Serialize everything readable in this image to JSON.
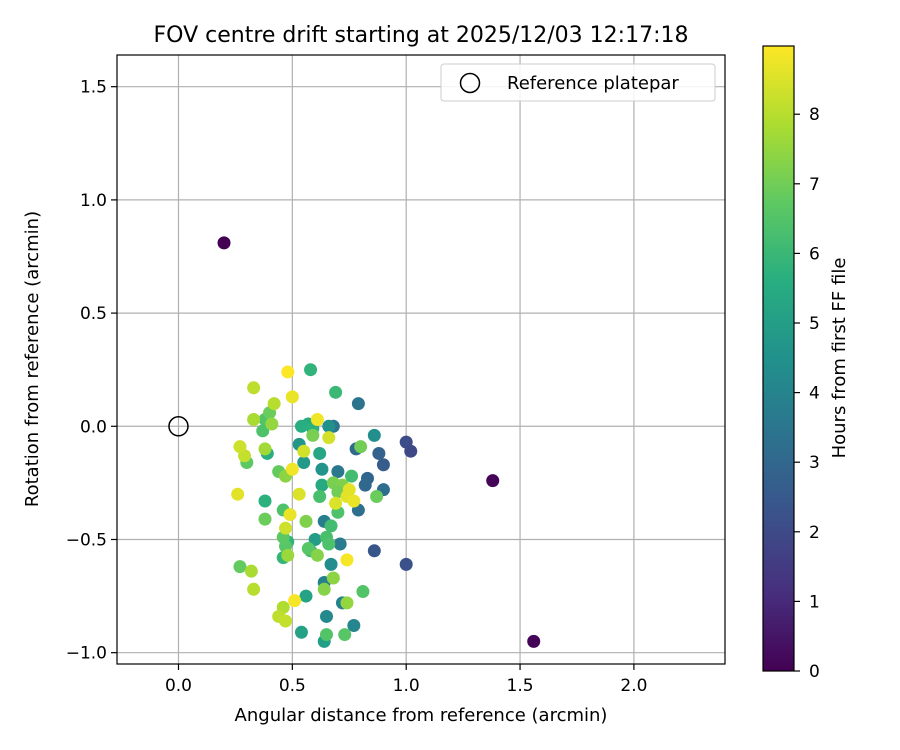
{
  "chart_data": {
    "type": "scatter",
    "title": "FOV centre drift starting at 2025/12/03 12:17:18",
    "xlabel": "Angular distance from reference (arcmin)",
    "ylabel": "Rotation from reference (arcmin)",
    "xlim": [
      -0.27,
      2.4
    ],
    "ylim": [
      -1.05,
      1.64
    ],
    "xticks": [
      0.0,
      0.5,
      1.0,
      1.5,
      2.0
    ],
    "xtick_labels": [
      "0.0",
      "0.5",
      "1.0",
      "1.5",
      "2.0"
    ],
    "yticks": [
      -1.0,
      -0.5,
      0.0,
      0.5,
      1.0,
      1.5
    ],
    "ytick_labels": [
      "−1.0",
      "−0.5",
      "0.0",
      "0.5",
      "1.0",
      "1.5"
    ],
    "grid": true,
    "legend": {
      "label": "Reference platepar",
      "position": "upper right"
    },
    "reference_point": {
      "x": 0.0,
      "y": 0.0
    },
    "colorbar": {
      "label": "Hours from first FF file",
      "min": 0,
      "max": 8.98,
      "ticks": [
        0,
        1,
        2,
        3,
        4,
        5,
        6,
        7,
        8
      ],
      "tick_labels": [
        "0",
        "1",
        "2",
        "3",
        "4",
        "5",
        "6",
        "7",
        "8"
      ],
      "colormap": "viridis"
    },
    "points": [
      {
        "x": 0.2,
        "y": 0.81,
        "t": 0.0
      },
      {
        "x": 1.38,
        "y": -0.24,
        "t": 0.1
      },
      {
        "x": 1.56,
        "y": -0.95,
        "t": 0.1
      },
      {
        "x": 1.0,
        "y": -0.07,
        "t": 2.1
      },
      {
        "x": 1.02,
        "y": -0.11,
        "t": 2.0
      },
      {
        "x": 1.0,
        "y": -0.61,
        "t": 2.2
      },
      {
        "x": 0.86,
        "y": -0.55,
        "t": 2.4
      },
      {
        "x": 0.9,
        "y": -0.17,
        "t": 2.6
      },
      {
        "x": 0.88,
        "y": -0.12,
        "t": 2.8
      },
      {
        "x": 0.83,
        "y": -0.23,
        "t": 2.9
      },
      {
        "x": 0.82,
        "y": -0.26,
        "t": 3.0
      },
      {
        "x": 0.78,
        "y": -0.1,
        "t": 3.1
      },
      {
        "x": 0.9,
        "y": -0.28,
        "t": 3.2
      },
      {
        "x": 0.79,
        "y": -0.37,
        "t": 3.3
      },
      {
        "x": 0.79,
        "y": 0.1,
        "t": 3.4
      },
      {
        "x": 0.68,
        "y": 0.0,
        "t": 3.5
      },
      {
        "x": 0.7,
        "y": -0.2,
        "t": 3.6
      },
      {
        "x": 0.71,
        "y": -0.52,
        "t": 3.7
      },
      {
        "x": 0.64,
        "y": -0.42,
        "t": 3.8
      },
      {
        "x": 0.64,
        "y": -0.69,
        "t": 3.9
      },
      {
        "x": 0.72,
        "y": -0.78,
        "t": 4.0
      },
      {
        "x": 0.77,
        "y": -0.88,
        "t": 4.1
      },
      {
        "x": 0.65,
        "y": -0.84,
        "t": 4.2
      },
      {
        "x": 0.67,
        "y": -0.61,
        "t": 4.3
      },
      {
        "x": 0.86,
        "y": -0.04,
        "t": 4.4
      },
      {
        "x": 0.66,
        "y": 0.0,
        "t": 4.5
      },
      {
        "x": 0.63,
        "y": -0.19,
        "t": 4.6
      },
      {
        "x": 0.53,
        "y": -0.08,
        "t": 4.7
      },
      {
        "x": 0.55,
        "y": -0.16,
        "t": 4.8
      },
      {
        "x": 0.6,
        "y": -0.5,
        "t": 4.9
      },
      {
        "x": 0.64,
        "y": -0.95,
        "t": 5.0
      },
      {
        "x": 0.54,
        "y": -0.91,
        "t": 5.1
      },
      {
        "x": 0.56,
        "y": -0.75,
        "t": 5.2
      },
      {
        "x": 0.62,
        "y": -0.12,
        "t": 5.3
      },
      {
        "x": 0.63,
        "y": -0.26,
        "t": 5.4
      },
      {
        "x": 0.57,
        "y": 0.01,
        "t": 5.5
      },
      {
        "x": 0.54,
        "y": 0.0,
        "t": 5.6
      },
      {
        "x": 0.59,
        "y": -0.01,
        "t": 5.7
      },
      {
        "x": 0.48,
        "y": -0.51,
        "t": 5.8
      },
      {
        "x": 0.46,
        "y": -0.58,
        "t": 5.9
      },
      {
        "x": 0.38,
        "y": -0.33,
        "t": 5.7
      },
      {
        "x": 0.39,
        "y": -0.12,
        "t": 5.6
      },
      {
        "x": 0.58,
        "y": 0.25,
        "t": 5.8
      },
      {
        "x": 0.69,
        "y": 0.15,
        "t": 6.0
      },
      {
        "x": 0.58,
        "y": -0.55,
        "t": 6.1
      },
      {
        "x": 0.67,
        "y": -0.44,
        "t": 6.2
      },
      {
        "x": 0.62,
        "y": -0.31,
        "t": 6.3
      },
      {
        "x": 0.7,
        "y": -0.38,
        "t": 6.4
      },
      {
        "x": 0.76,
        "y": -0.22,
        "t": 6.2
      },
      {
        "x": 0.65,
        "y": -0.49,
        "t": 6.3
      },
      {
        "x": 0.66,
        "y": -0.52,
        "t": 6.4
      },
      {
        "x": 0.65,
        "y": -0.92,
        "t": 6.5
      },
      {
        "x": 0.73,
        "y": -0.92,
        "t": 6.6
      },
      {
        "x": 0.81,
        "y": -0.73,
        "t": 6.5
      },
      {
        "x": 0.57,
        "y": -0.54,
        "t": 6.6
      },
      {
        "x": 0.46,
        "y": -0.37,
        "t": 6.4
      },
      {
        "x": 0.47,
        "y": -0.53,
        "t": 6.6
      },
      {
        "x": 0.46,
        "y": -0.49,
        "t": 6.7
      },
      {
        "x": 0.44,
        "y": -0.2,
        "t": 6.8
      },
      {
        "x": 0.38,
        "y": -0.41,
        "t": 6.9
      },
      {
        "x": 0.27,
        "y": -0.62,
        "t": 6.8
      },
      {
        "x": 0.3,
        "y": -0.16,
        "t": 6.7
      },
      {
        "x": 0.38,
        "y": 0.03,
        "t": 6.5
      },
      {
        "x": 0.37,
        "y": -0.02,
        "t": 6.4
      },
      {
        "x": 0.4,
        "y": 0.06,
        "t": 6.9
      },
      {
        "x": 0.8,
        "y": -0.09,
        "t": 7.0
      },
      {
        "x": 0.87,
        "y": -0.31,
        "t": 6.9
      },
      {
        "x": 0.68,
        "y": -0.25,
        "t": 7.1
      },
      {
        "x": 0.72,
        "y": -0.26,
        "t": 7.2
      },
      {
        "x": 0.7,
        "y": -0.29,
        "t": 7.0
      },
      {
        "x": 0.64,
        "y": -0.72,
        "t": 7.3
      },
      {
        "x": 0.68,
        "y": -0.67,
        "t": 7.4
      },
      {
        "x": 0.74,
        "y": -0.78,
        "t": 7.5
      },
      {
        "x": 0.61,
        "y": -0.57,
        "t": 7.3
      },
      {
        "x": 0.56,
        "y": -0.42,
        "t": 7.2
      },
      {
        "x": 0.59,
        "y": -0.04,
        "t": 7.1
      },
      {
        "x": 0.47,
        "y": -0.22,
        "t": 7.4
      },
      {
        "x": 0.48,
        "y": -0.57,
        "t": 7.6
      },
      {
        "x": 0.41,
        "y": 0.01,
        "t": 7.5
      },
      {
        "x": 0.38,
        "y": -0.1,
        "t": 7.7
      },
      {
        "x": 0.33,
        "y": 0.03,
        "t": 7.8
      },
      {
        "x": 0.32,
        "y": -0.64,
        "t": 7.8
      },
      {
        "x": 0.33,
        "y": -0.72,
        "t": 8.0
      },
      {
        "x": 0.46,
        "y": -0.8,
        "t": 7.9
      },
      {
        "x": 0.44,
        "y": -0.84,
        "t": 8.1
      },
      {
        "x": 0.47,
        "y": -0.86,
        "t": 8.2
      },
      {
        "x": 0.42,
        "y": 0.1,
        "t": 8.0
      },
      {
        "x": 0.33,
        "y": 0.17,
        "t": 8.1
      },
      {
        "x": 0.29,
        "y": -0.13,
        "t": 8.2
      },
      {
        "x": 0.27,
        "y": -0.09,
        "t": 8.3
      },
      {
        "x": 0.47,
        "y": -0.45,
        "t": 8.3
      },
      {
        "x": 0.55,
        "y": -0.11,
        "t": 8.4
      },
      {
        "x": 0.53,
        "y": -0.3,
        "t": 8.5
      },
      {
        "x": 0.66,
        "y": -0.05,
        "t": 8.4
      },
      {
        "x": 0.69,
        "y": -0.34,
        "t": 8.5
      },
      {
        "x": 0.74,
        "y": -0.31,
        "t": 8.6
      },
      {
        "x": 0.77,
        "y": -0.33,
        "t": 8.7
      },
      {
        "x": 0.75,
        "y": -0.28,
        "t": 8.6
      },
      {
        "x": 0.49,
        "y": -0.39,
        "t": 8.7
      },
      {
        "x": 0.5,
        "y": -0.19,
        "t": 8.8
      },
      {
        "x": 0.26,
        "y": -0.3,
        "t": 8.6
      },
      {
        "x": 0.5,
        "y": 0.13,
        "t": 8.7
      },
      {
        "x": 0.61,
        "y": 0.03,
        "t": 8.8
      },
      {
        "x": 0.74,
        "y": -0.59,
        "t": 8.9
      },
      {
        "x": 0.51,
        "y": -0.77,
        "t": 8.9
      },
      {
        "x": 0.48,
        "y": 0.24,
        "t": 8.95
      }
    ]
  }
}
